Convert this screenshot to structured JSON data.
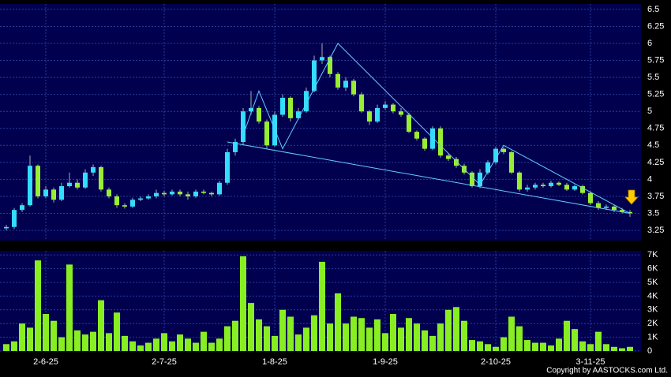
{
  "chart_data": [
    {
      "type": "candlestick",
      "categories": [
        null,
        null,
        null,
        null,
        null,
        "2-6-25",
        null,
        null,
        null,
        null,
        null,
        null,
        null,
        null,
        null,
        null,
        null,
        null,
        null,
        null,
        "2-7-25",
        null,
        null,
        null,
        null,
        null,
        null,
        null,
        null,
        null,
        null,
        null,
        null,
        null,
        "1-8-25",
        null,
        null,
        null,
        null,
        null,
        null,
        null,
        null,
        null,
        null,
        null,
        null,
        null,
        "1-9-25",
        null,
        null,
        null,
        null,
        null,
        null,
        null,
        null,
        null,
        null,
        null,
        null,
        null,
        "2-10-25",
        null,
        null,
        null,
        null,
        null,
        null,
        null,
        null,
        null,
        null,
        null,
        "3-11-25",
        null,
        null,
        null,
        null,
        null
      ],
      "open": [
        3.28,
        3.3,
        3.55,
        3.62,
        4.2,
        3.75,
        3.85,
        3.7,
        3.9,
        3.95,
        3.88,
        4.1,
        4.18,
        3.85,
        3.75,
        3.62,
        3.6,
        3.7,
        3.72,
        3.75,
        3.8,
        3.78,
        3.82,
        3.78,
        3.75,
        3.82,
        3.8,
        3.78,
        3.95,
        4.4,
        4.55,
        5.0,
        5.05,
        4.85,
        4.5,
        4.95,
        5.2,
        4.9,
        5.0,
        5.3,
        5.75,
        5.8,
        5.55,
        5.35,
        5.45,
        5.25,
        5.0,
        4.85,
        5.05,
        5.1,
        5.0,
        4.95,
        4.7,
        4.6,
        4.45,
        4.75,
        4.35,
        4.3,
        4.2,
        4.1,
        3.9,
        4.1,
        4.25,
        4.45,
        4.4,
        4.1,
        3.85,
        3.88,
        3.92,
        3.9,
        3.95,
        3.92,
        3.85,
        3.9,
        3.8,
        3.65,
        3.58,
        3.6,
        3.55,
        3.52
      ],
      "high": [
        3.33,
        3.58,
        3.65,
        4.35,
        4.22,
        3.9,
        3.88,
        3.95,
        4.1,
        4.0,
        4.15,
        4.22,
        4.2,
        3.88,
        3.78,
        3.65,
        3.73,
        3.75,
        3.78,
        3.85,
        3.83,
        3.85,
        3.85,
        3.82,
        3.85,
        3.85,
        3.82,
        3.98,
        4.45,
        4.6,
        5.05,
        5.3,
        5.08,
        4.88,
        5.0,
        5.25,
        5.22,
        5.05,
        5.35,
        5.82,
        6.0,
        5.82,
        5.58,
        5.5,
        5.48,
        5.28,
        5.02,
        5.1,
        5.15,
        5.12,
        5.05,
        4.98,
        4.72,
        4.62,
        4.78,
        4.78,
        4.38,
        4.33,
        4.23,
        4.12,
        4.15,
        4.28,
        4.48,
        4.47,
        4.42,
        4.12,
        3.92,
        3.95,
        3.95,
        3.98,
        3.97,
        3.95,
        3.92,
        3.92,
        3.82,
        3.68,
        3.63,
        3.62,
        3.58,
        3.55
      ],
      "low": [
        3.25,
        3.27,
        3.52,
        3.6,
        3.72,
        3.72,
        3.66,
        3.68,
        3.88,
        3.85,
        3.86,
        4.05,
        3.82,
        3.72,
        3.58,
        3.57,
        3.58,
        3.68,
        3.7,
        3.72,
        3.75,
        3.76,
        3.75,
        3.7,
        3.73,
        3.78,
        3.75,
        3.76,
        3.92,
        4.35,
        4.5,
        4.95,
        4.82,
        4.45,
        4.48,
        4.92,
        4.85,
        4.88,
        4.98,
        5.28,
        5.7,
        5.5,
        5.32,
        5.3,
        5.22,
        4.98,
        4.8,
        4.83,
        5.02,
        4.97,
        4.92,
        4.68,
        4.57,
        4.42,
        4.43,
        4.32,
        4.27,
        4.17,
        4.07,
        3.88,
        3.87,
        4.07,
        4.22,
        4.37,
        4.08,
        3.82,
        3.82,
        3.85,
        3.88,
        3.88,
        3.9,
        3.83,
        3.83,
        3.78,
        3.62,
        3.55,
        3.55,
        3.52,
        3.5,
        3.45
      ],
      "close": [
        3.3,
        3.55,
        3.62,
        4.2,
        3.75,
        3.85,
        3.7,
        3.9,
        3.95,
        3.88,
        4.1,
        4.18,
        3.85,
        3.75,
        3.62,
        3.6,
        3.7,
        3.72,
        3.75,
        3.8,
        3.78,
        3.82,
        3.78,
        3.75,
        3.82,
        3.8,
        3.78,
        3.95,
        4.4,
        4.55,
        5.0,
        5.05,
        4.85,
        4.5,
        4.95,
        5.2,
        4.9,
        5.0,
        5.3,
        5.75,
        5.8,
        5.55,
        5.35,
        5.45,
        5.25,
        5.0,
        4.85,
        5.05,
        5.1,
        5.0,
        4.95,
        4.7,
        4.6,
        4.45,
        4.75,
        4.35,
        4.3,
        4.2,
        4.1,
        3.9,
        4.1,
        4.25,
        4.45,
        4.4,
        4.1,
        3.85,
        3.88,
        3.92,
        3.9,
        3.95,
        3.92,
        3.85,
        3.9,
        3.8,
        3.65,
        3.58,
        3.6,
        3.55,
        3.52,
        3.5
      ],
      "up_color": "#33ddff",
      "down_color": "#99ee33",
      "ylim": [
        3.1,
        6.58
      ],
      "yticks": [
        3.25,
        3.5,
        3.75,
        4,
        4.25,
        4.5,
        4.75,
        5,
        5.25,
        5.5,
        5.75,
        6,
        6.25,
        6.5
      ],
      "trend_lines": [
        {
          "color": "#66ccff",
          "x": [
            28,
            79
          ],
          "y": [
            4.55,
            3.5
          ]
        },
        {
          "color": "#66ccff",
          "x": [
            30,
            32,
            35,
            42,
            60,
            63,
            79
          ],
          "y": [
            4.65,
            5.3,
            4.45,
            6.0,
            3.92,
            4.5,
            3.5
          ]
        }
      ],
      "grid": true
    },
    {
      "type": "bar",
      "values": [
        500,
        700,
        2000,
        1700,
        6600,
        2700,
        2200,
        1000,
        6300,
        1500,
        1200,
        1400,
        3700,
        1300,
        2800,
        1100,
        700,
        400,
        600,
        900,
        1300,
        700,
        1200,
        900,
        600,
        1400,
        600,
        900,
        1800,
        2200,
        6900,
        3500,
        2300,
        1800,
        1100,
        3000,
        2500,
        1200,
        1700,
        2600,
        6500,
        2000,
        4200,
        2000,
        2500,
        2400,
        1700,
        2300,
        1300,
        2700,
        1700,
        2400,
        2000,
        1500,
        1100,
        2000,
        3000,
        3200,
        2200,
        800,
        700,
        500,
        300,
        1000,
        2500,
        1800,
        800,
        600,
        600,
        400,
        900,
        2200,
        1600,
        700,
        500,
        1400,
        500,
        300,
        200,
        300
      ],
      "color": "#88ee22",
      "ylim": [
        0,
        7300
      ],
      "yticks": [
        0,
        {
          "value": 1000,
          "label": "1K"
        },
        {
          "value": 2000,
          "label": "2K"
        },
        {
          "value": 3000,
          "label": "3K"
        },
        {
          "value": 4000,
          "label": "4K"
        },
        {
          "value": 5000,
          "label": "5K"
        },
        {
          "value": 6000,
          "label": "6K"
        },
        {
          "value": 7000,
          "label": "7K"
        }
      ],
      "grid": true,
      "footer": "Copyright by AASTOCKS.com Ltd."
    }
  ]
}
